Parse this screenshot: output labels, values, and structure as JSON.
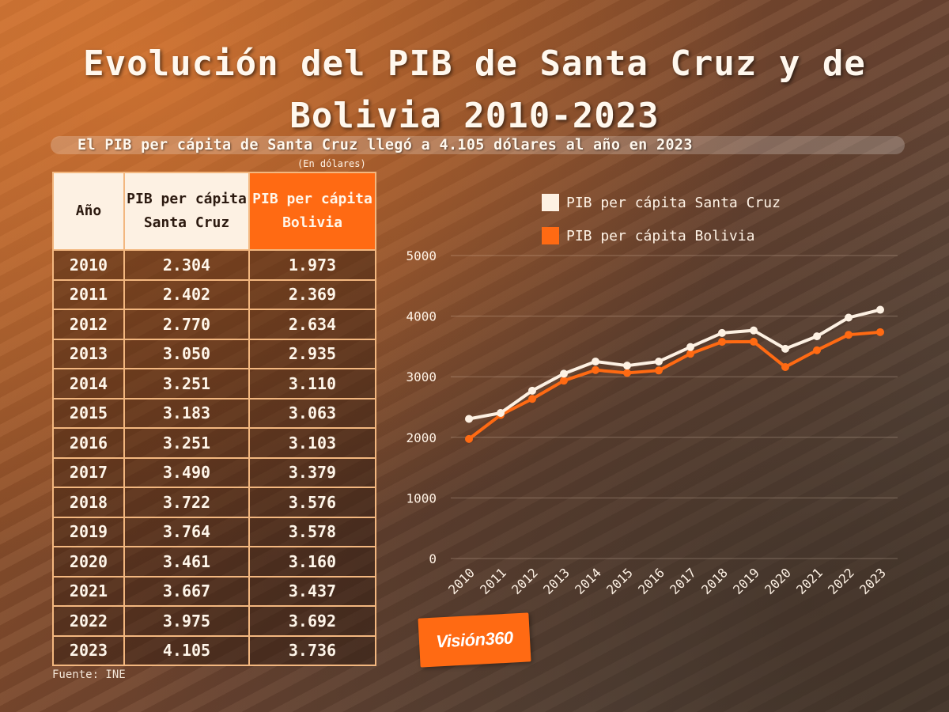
{
  "title": "Evolución del PIB de Santa Cruz y de Bolivia 2010-2023",
  "subtitle": "El PIB per cápita de Santa Cruz llegó a 4.105 dólares al año en 2023",
  "units_note": "(En dólares)",
  "source": "Fuente: INE",
  "logo_text": "Visión360",
  "colors": {
    "santa_cruz": "#fdf1e3",
    "bolivia": "#ff6a13"
  },
  "table": {
    "headers": [
      "Año",
      "PIB per cápita Santa Cruz",
      "PIB per cápita Bolivia"
    ],
    "rows": [
      [
        "2010",
        "2.304",
        "1.973"
      ],
      [
        "2011",
        "2.402",
        "2.369"
      ],
      [
        "2012",
        "2.770",
        "2.634"
      ],
      [
        "2013",
        "3.050",
        "2.935"
      ],
      [
        "2014",
        "3.251",
        "3.110"
      ],
      [
        "2015",
        "3.183",
        "3.063"
      ],
      [
        "2016",
        "3.251",
        "3.103"
      ],
      [
        "2017",
        "3.490",
        "3.379"
      ],
      [
        "2018",
        "3.722",
        "3.576"
      ],
      [
        "2019",
        "3.764",
        "3.578"
      ],
      [
        "2020",
        "3.461",
        "3.160"
      ],
      [
        "2021",
        "3.667",
        "3.437"
      ],
      [
        "2022",
        "3.975",
        "3.692"
      ],
      [
        "2023",
        "4.105",
        "3.736"
      ]
    ]
  },
  "chart_data": {
    "type": "line",
    "categories": [
      "2010",
      "2011",
      "2012",
      "2013",
      "2014",
      "2015",
      "2016",
      "2017",
      "2018",
      "2019",
      "2020",
      "2021",
      "2022",
      "2023"
    ],
    "series": [
      {
        "name": "PIB per cápita Santa Cruz",
        "values": [
          2304,
          2402,
          2770,
          3050,
          3251,
          3183,
          3251,
          3490,
          3722,
          3764,
          3461,
          3667,
          3975,
          4105
        ]
      },
      {
        "name": "PIB per cápita Bolivia",
        "values": [
          1973,
          2369,
          2634,
          2935,
          3110,
          3063,
          3103,
          3379,
          3576,
          3578,
          3160,
          3437,
          3692,
          3736
        ]
      }
    ],
    "yticks": [
      0,
      1000,
      2000,
      3000,
      4000,
      5000
    ],
    "ylim": [
      0,
      5000
    ],
    "grid": true,
    "legend": "top"
  }
}
